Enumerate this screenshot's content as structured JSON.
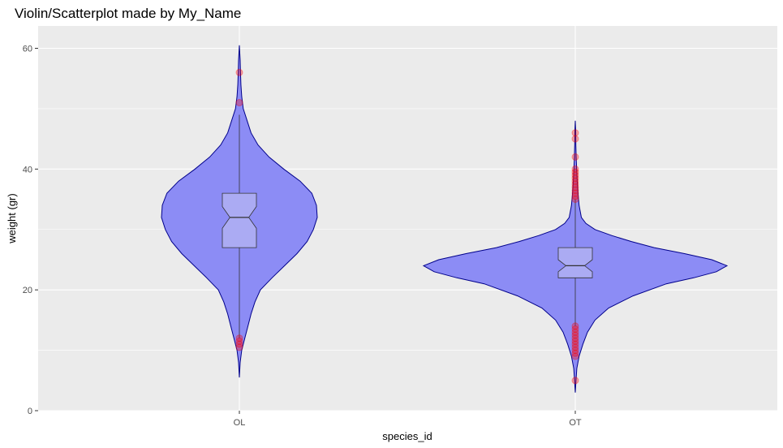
{
  "chart_data": {
    "type": "violin",
    "title": "Violin/Scatterplot made by My_Name",
    "xlabel": "species_id",
    "ylabel": "weight (gr)",
    "categories": [
      "OL",
      "OT"
    ],
    "ylim": [
      0,
      60
    ],
    "yticks": [
      0,
      20,
      40,
      60
    ],
    "grid": true,
    "colors": {
      "panel_bg": "#ebebeb",
      "grid": "#ffffff",
      "violin_fill": "#8c8cf5",
      "violin_outline": "#00008b",
      "box_fill": "#b0b0f2",
      "box_outline": "#333333",
      "outlier": "#ff0000"
    },
    "violins": [
      {
        "category": "OL",
        "range": [
          5.5,
          60.5
        ],
        "profile": [
          [
            5.5,
            0.0
          ],
          [
            8,
            0.01
          ],
          [
            10,
            0.03
          ],
          [
            12,
            0.07
          ],
          [
            14,
            0.11
          ],
          [
            16,
            0.15
          ],
          [
            18,
            0.2
          ],
          [
            20,
            0.27
          ],
          [
            22,
            0.42
          ],
          [
            24,
            0.58
          ],
          [
            26,
            0.74
          ],
          [
            28,
            0.87
          ],
          [
            30,
            0.95
          ],
          [
            32,
            1.0
          ],
          [
            34,
            0.99
          ],
          [
            36,
            0.93
          ],
          [
            38,
            0.78
          ],
          [
            40,
            0.57
          ],
          [
            42,
            0.38
          ],
          [
            44,
            0.24
          ],
          [
            46,
            0.15
          ],
          [
            48,
            0.1
          ],
          [
            50,
            0.05
          ],
          [
            52,
            0.03
          ],
          [
            54,
            0.02
          ],
          [
            56,
            0.015
          ],
          [
            58,
            0.01
          ],
          [
            60.5,
            0.0
          ]
        ]
      },
      {
        "category": "OT",
        "range": [
          3,
          48
        ],
        "profile": [
          [
            3,
            0.0
          ],
          [
            5,
            0.005
          ],
          [
            7,
            0.01
          ],
          [
            9,
            0.025
          ],
          [
            11,
            0.05
          ],
          [
            13,
            0.08
          ],
          [
            15,
            0.13
          ],
          [
            17,
            0.22
          ],
          [
            19,
            0.38
          ],
          [
            21,
            0.6
          ],
          [
            22,
            0.78
          ],
          [
            23,
            0.93
          ],
          [
            24,
            1.0
          ],
          [
            25,
            0.9
          ],
          [
            26,
            0.72
          ],
          [
            27,
            0.52
          ],
          [
            28,
            0.37
          ],
          [
            29,
            0.24
          ],
          [
            30,
            0.13
          ],
          [
            31,
            0.07
          ],
          [
            32,
            0.04
          ],
          [
            34,
            0.025
          ],
          [
            36,
            0.018
          ],
          [
            38,
            0.013
          ],
          [
            40,
            0.009
          ],
          [
            42,
            0.006
          ],
          [
            44,
            0.004
          ],
          [
            46,
            0.003
          ],
          [
            48,
            0.0
          ]
        ]
      }
    ],
    "boxplots": [
      {
        "category": "OL",
        "q1": 27,
        "median": 32,
        "q3": 36,
        "whisker_low": 12,
        "whisker_high": 49
      },
      {
        "category": "OT",
        "q1": 22,
        "median": 24,
        "q3": 27,
        "whisker_low": 14,
        "whisker_high": 35
      }
    ],
    "outliers": [
      {
        "category": "OL",
        "values": [
          56,
          51,
          12,
          11.5,
          11,
          10.5
        ]
      },
      {
        "category": "OT",
        "values": [
          46,
          45,
          42,
          40,
          39.5,
          39,
          38.5,
          38,
          37.5,
          37,
          36.5,
          36,
          35.5,
          35,
          14,
          13.5,
          13,
          12.5,
          12,
          11.5,
          11,
          10.5,
          10,
          9.5,
          9,
          5
        ]
      }
    ]
  }
}
